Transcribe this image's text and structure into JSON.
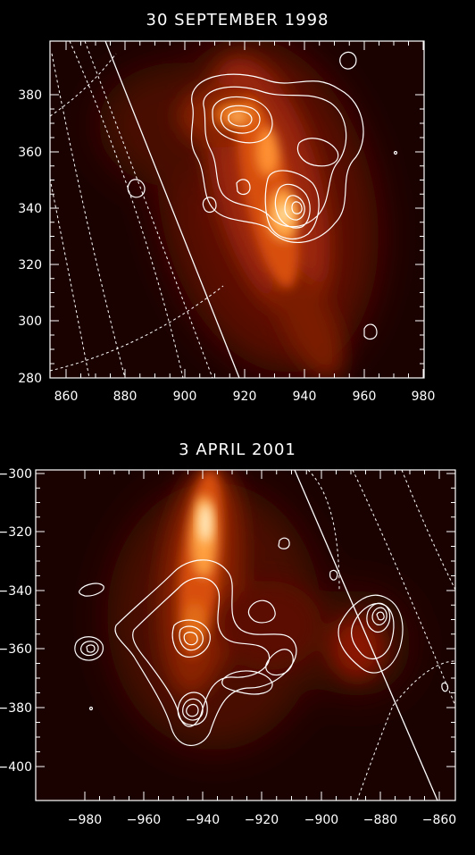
{
  "panels": [
    {
      "title": "30 SEPTEMBER 1998",
      "x_ticks": [
        "860",
        "880",
        "900",
        "920",
        "940",
        "960",
        "980"
      ],
      "y_ticks": [
        "380",
        "360",
        "340",
        "320",
        "300",
        "280"
      ]
    },
    {
      "title": "3 APRIL 2001",
      "x_ticks": [
        "−980",
        "−960",
        "−940",
        "−920",
        "−900",
        "−880",
        "−860"
      ],
      "y_ticks": [
        "−300",
        "−320",
        "−340",
        "−360",
        "−380",
        "−400"
      ]
    }
  ],
  "colors": {
    "background": "#000000",
    "emission_low": "#3a0600",
    "emission_mid": "#c23a0c",
    "emission_high": "#ffb35a",
    "emission_peak": "#fff6e0",
    "contours": "#ffffff"
  }
}
